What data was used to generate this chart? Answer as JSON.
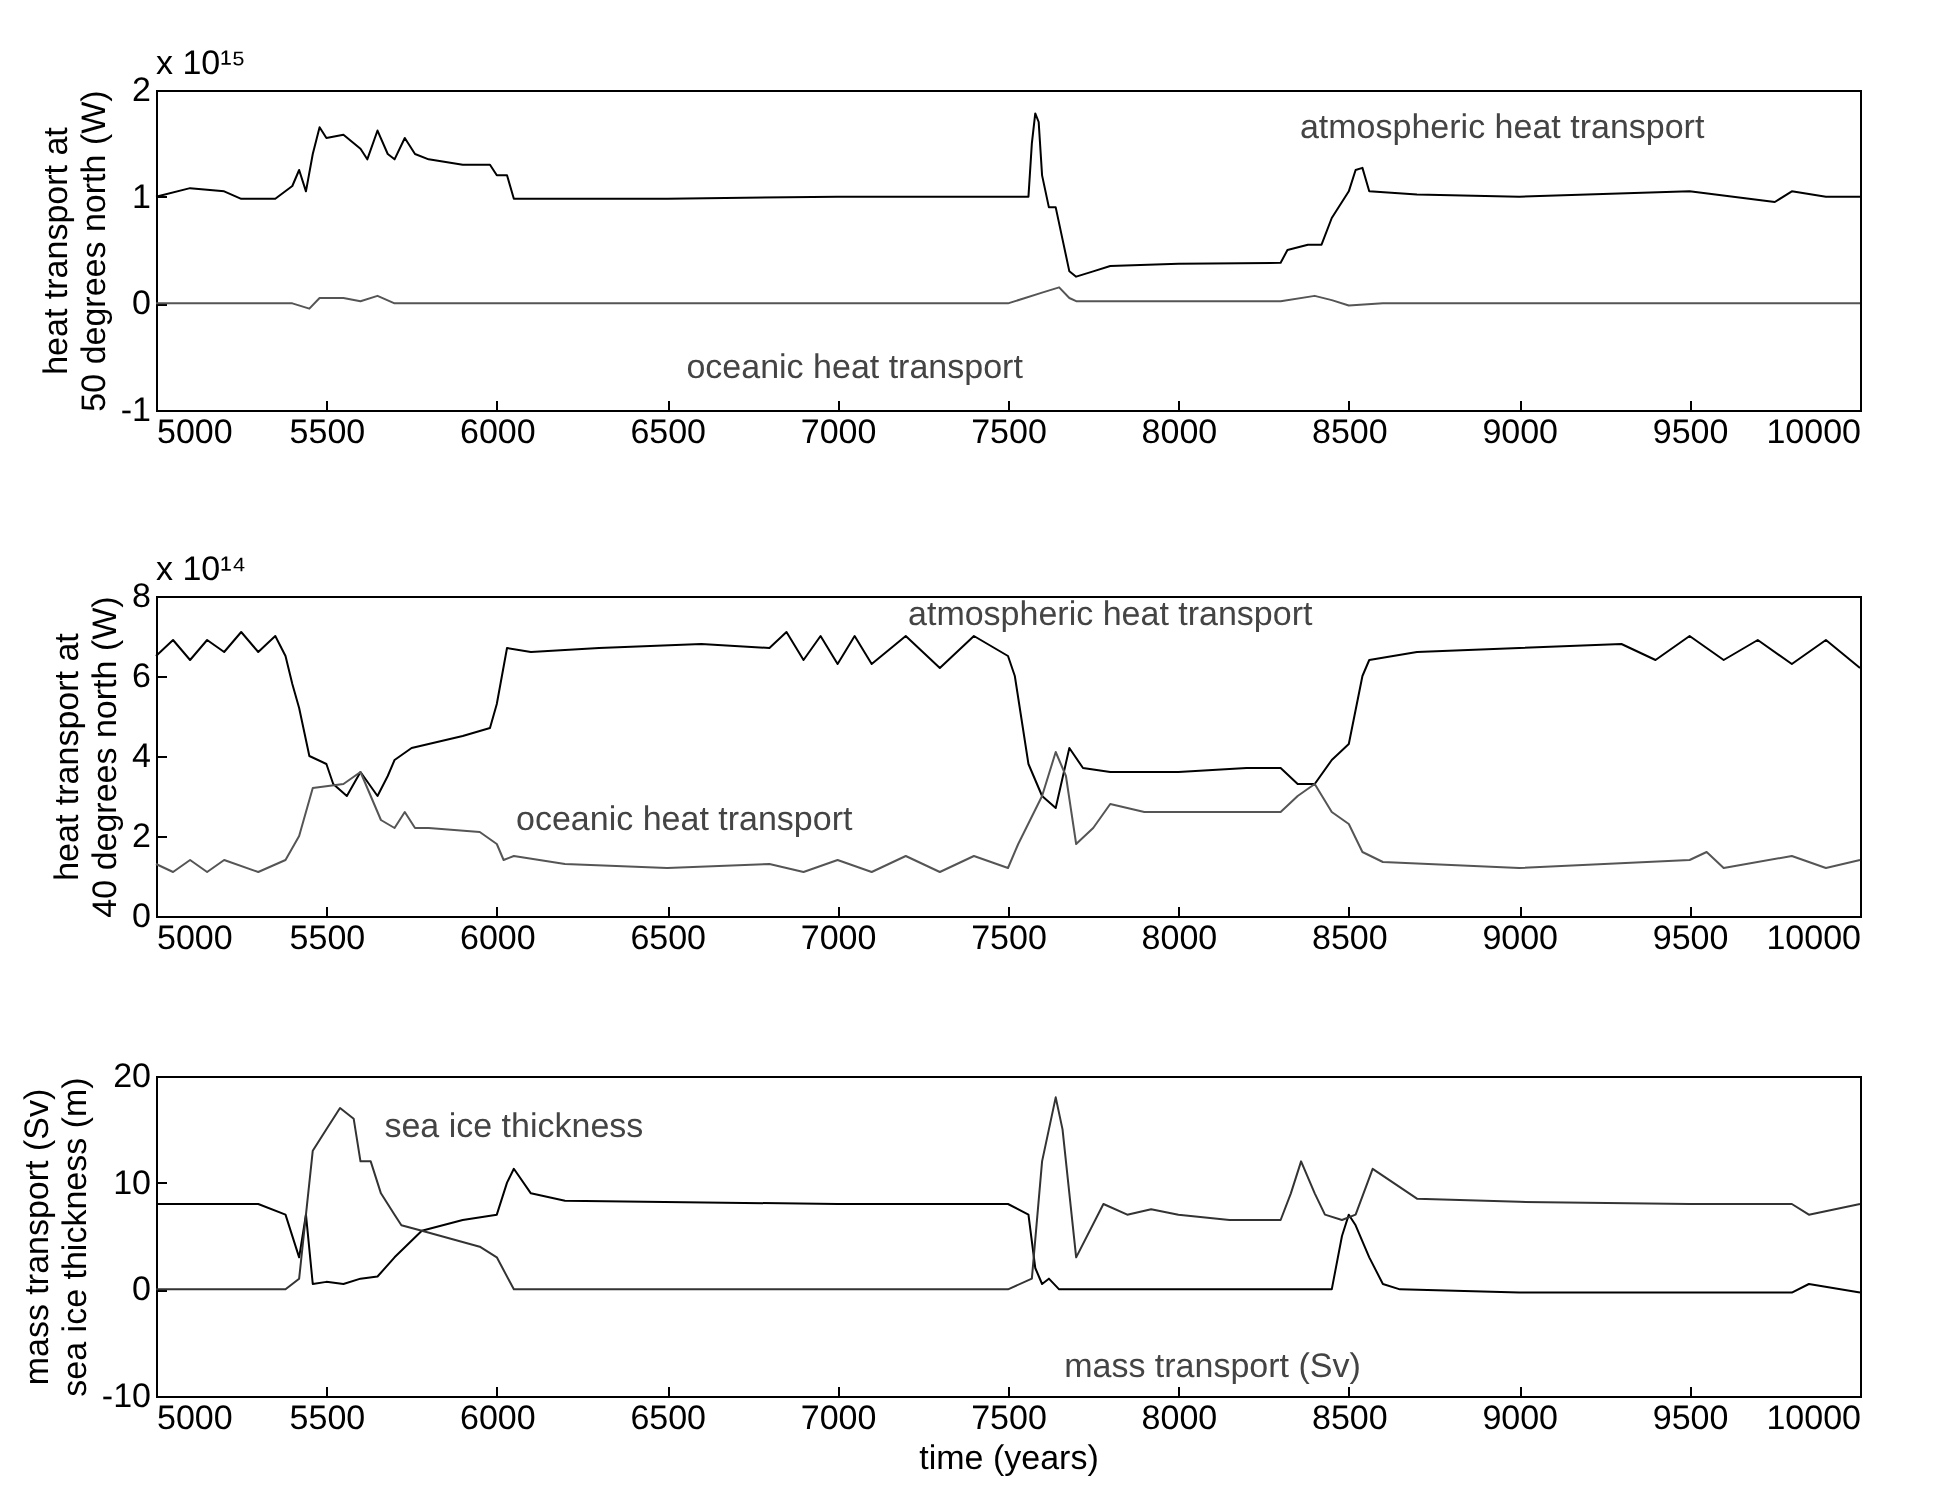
{
  "chart_data": [
    {
      "type": "line",
      "ylabel": "heat transport at\n50 degrees north (W)",
      "xlim": [
        5000,
        10000
      ],
      "xticks": [
        5000,
        5500,
        6000,
        6500,
        7000,
        7500,
        8000,
        8500,
        9000,
        9500,
        10000
      ],
      "ylim": [
        -1,
        2
      ],
      "yticks": [
        -1,
        0,
        1,
        2
      ],
      "series": [
        {
          "color": "#000000",
          "name": "atmospheric heat transport",
          "x": [
            5000,
            5100,
            5200,
            5250,
            5350,
            5400,
            5420,
            5440,
            5460,
            5480,
            5500,
            5550,
            5600,
            5620,
            5650,
            5680,
            5700,
            5730,
            5760,
            5800,
            5900,
            5980,
            6000,
            6030,
            6050,
            6100,
            6500,
            7000,
            7200,
            7500,
            7560,
            7570,
            7580,
            7590,
            7600,
            7620,
            7640,
            7660,
            7680,
            7700,
            7750,
            7800,
            8000,
            8300,
            8320,
            8380,
            8420,
            8450,
            8500,
            8520,
            8540,
            8560,
            8700,
            9000,
            9500,
            9750,
            9800,
            9900,
            10000
          ],
          "values": [
            1.0,
            1.08,
            1.05,
            0.98,
            0.98,
            1.1,
            1.25,
            1.05,
            1.4,
            1.65,
            1.55,
            1.58,
            1.45,
            1.35,
            1.62,
            1.4,
            1.35,
            1.55,
            1.4,
            1.35,
            1.3,
            1.3,
            1.2,
            1.2,
            0.98,
            0.98,
            0.98,
            1.0,
            1.0,
            1.0,
            1.0,
            1.5,
            1.78,
            1.7,
            1.2,
            0.9,
            0.9,
            0.6,
            0.3,
            0.25,
            0.3,
            0.35,
            0.37,
            0.38,
            0.5,
            0.55,
            0.55,
            0.8,
            1.05,
            1.25,
            1.27,
            1.05,
            1.02,
            1.0,
            1.05,
            0.95,
            1.05,
            1.0,
            1.0
          ]
        },
        {
          "color": "#555555",
          "name": "oceanic heat transport",
          "x": [
            5000,
            5400,
            5450,
            5480,
            5550,
            5600,
            5650,
            5700,
            6000,
            7500,
            7600,
            7650,
            7680,
            7700,
            8300,
            8400,
            8450,
            8500,
            8600,
            10000
          ],
          "values": [
            0,
            0,
            -0.05,
            0.05,
            0.05,
            0.02,
            0.07,
            0,
            0,
            0,
            0.1,
            0.15,
            0.05,
            0.02,
            0.02,
            0.07,
            0.03,
            -0.02,
            0,
            0
          ]
        }
      ],
      "annotations": [
        "x 10¹⁵"
      ]
    },
    {
      "type": "line",
      "ylabel": "heat transport at\n40 degrees north (W)",
      "xlim": [
        5000,
        10000
      ],
      "xticks": [
        5000,
        5500,
        6000,
        6500,
        7000,
        7500,
        8000,
        8500,
        9000,
        9500,
        10000
      ],
      "ylim": [
        0,
        8
      ],
      "yticks": [
        0,
        2,
        4,
        6,
        8
      ],
      "series": [
        {
          "color": "#000000",
          "name": "atmospheric heat transport",
          "x": [
            5000,
            5050,
            5100,
            5150,
            5200,
            5250,
            5300,
            5350,
            5380,
            5400,
            5420,
            5450,
            5500,
            5520,
            5560,
            5600,
            5650,
            5680,
            5700,
            5750,
            5800,
            5900,
            5980,
            6000,
            6030,
            6100,
            6300,
            6600,
            6800,
            6850,
            6900,
            6950,
            7000,
            7050,
            7100,
            7200,
            7300,
            7400,
            7500,
            7520,
            7560,
            7600,
            7640,
            7680,
            7720,
            7800,
            8000,
            8200,
            8300,
            8350,
            8400,
            8450,
            8500,
            8540,
            8560,
            8700,
            9000,
            9300,
            9400,
            9500,
            9600,
            9700,
            9800,
            9900,
            10000
          ],
          "values": [
            6.5,
            6.9,
            6.4,
            6.9,
            6.6,
            7.1,
            6.6,
            7.0,
            6.5,
            5.8,
            5.2,
            4.0,
            3.8,
            3.3,
            3.0,
            3.6,
            3.0,
            3.5,
            3.9,
            4.2,
            4.3,
            4.5,
            4.7,
            5.3,
            6.7,
            6.6,
            6.7,
            6.8,
            6.7,
            7.1,
            6.4,
            7.0,
            6.3,
            7.0,
            6.3,
            7.0,
            6.2,
            7.0,
            6.5,
            6.0,
            3.8,
            3.0,
            2.7,
            4.2,
            3.7,
            3.6,
            3.6,
            3.7,
            3.7,
            3.3,
            3.3,
            3.9,
            4.3,
            6.0,
            6.4,
            6.6,
            6.7,
            6.8,
            6.4,
            7.0,
            6.4,
            6.9,
            6.3,
            6.9,
            6.2
          ]
        },
        {
          "color": "#555555",
          "name": "oceanic heat transport",
          "x": [
            5000,
            5050,
            5100,
            5150,
            5200,
            5300,
            5380,
            5420,
            5460,
            5550,
            5600,
            5630,
            5660,
            5700,
            5730,
            5760,
            5800,
            5950,
            6000,
            6020,
            6050,
            6200,
            6500,
            6800,
            6900,
            7000,
            7100,
            7200,
            7300,
            7400,
            7500,
            7530,
            7600,
            7640,
            7670,
            7700,
            7750,
            7800,
            7900,
            8000,
            8200,
            8300,
            8350,
            8400,
            8450,
            8500,
            8540,
            8600,
            9000,
            9500,
            9550,
            9600,
            9800,
            9900,
            10000
          ],
          "values": [
            1.3,
            1.1,
            1.4,
            1.1,
            1.4,
            1.1,
            1.4,
            2.0,
            3.2,
            3.3,
            3.6,
            3.0,
            2.4,
            2.2,
            2.6,
            2.2,
            2.2,
            2.1,
            1.8,
            1.4,
            1.5,
            1.3,
            1.2,
            1.3,
            1.1,
            1.4,
            1.1,
            1.5,
            1.1,
            1.5,
            1.2,
            1.8,
            3.0,
            4.1,
            3.5,
            1.8,
            2.2,
            2.8,
            2.6,
            2.6,
            2.6,
            2.6,
            3.0,
            3.3,
            2.6,
            2.3,
            1.6,
            1.35,
            1.2,
            1.4,
            1.6,
            1.2,
            1.5,
            1.2,
            1.4
          ]
        }
      ],
      "annotations": [
        "x 10¹⁴"
      ]
    },
    {
      "type": "line",
      "xlabel": "time (years)",
      "ylabel": "mass transport (Sv)\nsea ice thickness (m)",
      "xlim": [
        5000,
        10000
      ],
      "xticks": [
        5000,
        5500,
        6000,
        6500,
        7000,
        7500,
        8000,
        8500,
        9000,
        9500,
        10000
      ],
      "ylim": [
        -10,
        20
      ],
      "yticks": [
        -10,
        0,
        10,
        20
      ],
      "series": [
        {
          "color": "#000000",
          "x": [
            5000,
            5300,
            5380,
            5420,
            5440,
            5460,
            5500,
            5550,
            5600,
            5650,
            5700,
            5780,
            5900,
            6000,
            6030,
            6050,
            6100,
            6200,
            7000,
            7500,
            7560,
            7580,
            7600,
            7620,
            7650,
            8450,
            8480,
            8500,
            8520,
            8560,
            8600,
            8650,
            9000,
            9500,
            9800,
            9850,
            10000
          ],
          "values": [
            8,
            8,
            7,
            3,
            7,
            0.5,
            0.7,
            0.5,
            1,
            1.2,
            3,
            5.5,
            6.5,
            7,
            10,
            11.3,
            9,
            8.3,
            8,
            8,
            7,
            2,
            0.5,
            1,
            0,
            0,
            5,
            7,
            6,
            3,
            0.5,
            0,
            -0.3,
            -0.3,
            -0.3,
            0.5,
            -0.3
          ],
          "name": "mass transport (Sv)"
        },
        {
          "color": "#333333",
          "name": "sea ice thickness",
          "x": [
            5000,
            5380,
            5420,
            5460,
            5500,
            5540,
            5580,
            5600,
            5630,
            5660,
            5700,
            5720,
            5780,
            5950,
            6000,
            6050,
            6500,
            7500,
            7570,
            7600,
            7640,
            7660,
            7700,
            7780,
            7850,
            7920,
            8000,
            8150,
            8300,
            8330,
            8360,
            8400,
            8430,
            8480,
            8520,
            8570,
            8700,
            9000,
            9500,
            9800,
            9850,
            10000
          ],
          "values": [
            0,
            0,
            1,
            13,
            15,
            17,
            16,
            12,
            12,
            9,
            7,
            6,
            5.5,
            4,
            3,
            0,
            0,
            0,
            1,
            12,
            18,
            15,
            3,
            8,
            7,
            7.5,
            7,
            6.5,
            6.5,
            9,
            12,
            9,
            7,
            6.5,
            7,
            11.3,
            8.5,
            8.2,
            8,
            8,
            7,
            8
          ]
        }
      ]
    }
  ]
}
